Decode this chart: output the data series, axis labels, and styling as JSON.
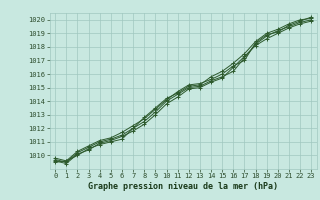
{
  "title": "Graphe pression niveau de la mer (hPa)",
  "xlabel": "Graphe pression niveau de la mer (hPa)",
  "x_hours": [
    0,
    1,
    2,
    3,
    4,
    5,
    6,
    7,
    8,
    9,
    10,
    11,
    12,
    13,
    14,
    15,
    16,
    17,
    18,
    19,
    20,
    21,
    22,
    23
  ],
  "line1": [
    1009.5,
    1009.6,
    1010.0,
    1010.5,
    1010.8,
    1011.0,
    1011.2,
    1012.0,
    1012.5,
    1013.2,
    1014.0,
    1014.5,
    1015.0,
    1015.1,
    1015.5,
    1015.8,
    1016.2,
    1017.2,
    1018.2,
    1018.8,
    1019.2,
    1019.5,
    1019.8,
    1020.0
  ],
  "line2": [
    1009.7,
    1009.5,
    1010.2,
    1010.6,
    1011.0,
    1011.2,
    1011.5,
    1012.0,
    1012.8,
    1013.5,
    1014.2,
    1014.6,
    1015.1,
    1015.2,
    1015.8,
    1016.2,
    1016.8,
    1017.5,
    1018.4,
    1019.0,
    1019.3,
    1019.7,
    1020.0,
    1020.1
  ],
  "line3": [
    1009.6,
    1009.4,
    1010.1,
    1010.4,
    1010.9,
    1011.1,
    1011.4,
    1011.8,
    1012.3,
    1013.0,
    1013.8,
    1014.3,
    1014.9,
    1015.0,
    1015.4,
    1015.7,
    1016.5,
    1017.3,
    1018.1,
    1018.6,
    1019.0,
    1019.4,
    1019.7,
    1019.9
  ],
  "line4": [
    1009.8,
    1009.6,
    1010.3,
    1010.7,
    1011.1,
    1011.3,
    1011.7,
    1012.2,
    1012.7,
    1013.4,
    1014.1,
    1014.7,
    1015.2,
    1015.3,
    1015.6,
    1016.0,
    1016.6,
    1017.0,
    1018.3,
    1018.9,
    1019.1,
    1019.6,
    1019.9,
    1020.2
  ],
  "line_color": "#2d5a2d",
  "marker": "+",
  "bg_color": "#c8e8e0",
  "grid_color": "#a0c8c0",
  "tick_color": "#2d4d2d",
  "label_color": "#1a3a1a",
  "ylim": [
    1009.0,
    1020.5
  ],
  "yticks": [
    1010,
    1011,
    1012,
    1013,
    1014,
    1015,
    1016,
    1017,
    1018,
    1019,
    1020
  ],
  "xtick_labels": [
    "0",
    "1",
    "2",
    "3",
    "4",
    "5",
    "6",
    "7",
    "8",
    "9",
    "10",
    "11",
    "12",
    "13",
    "14",
    "15",
    "16",
    "17",
    "18",
    "19",
    "20",
    "21",
    "22",
    "23"
  ]
}
